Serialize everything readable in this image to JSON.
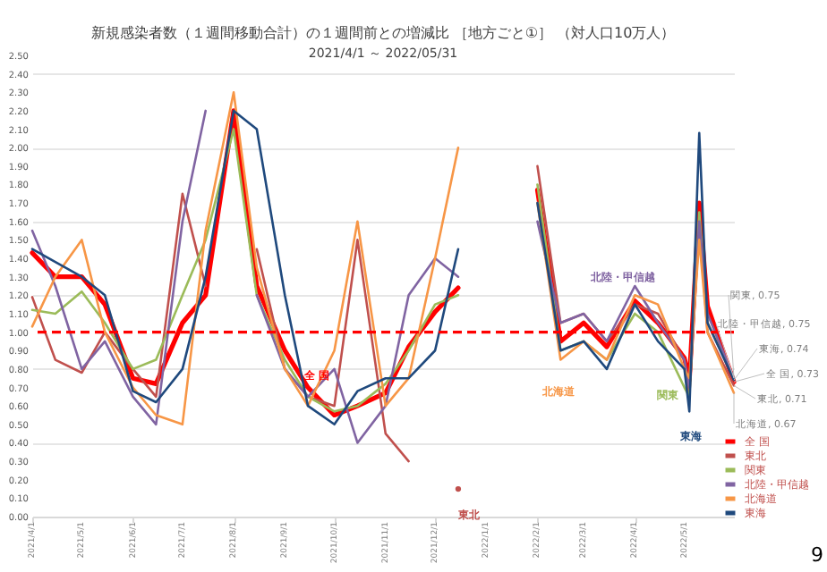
{
  "chart_data": {
    "type": "line",
    "title": "新規感染者数（１週間移動合計）の１週間前との増減比 ［地方ごと①］ （対人口10万人）",
    "subtitle": "2021/4/1 ～ 2022/05/31",
    "x": [
      "2021-04-01",
      "2021-04-15",
      "2021-05-01",
      "2021-05-15",
      "2021-06-01",
      "2021-06-15",
      "2021-07-01",
      "2021-07-15",
      "2021-08-01",
      "2021-08-15",
      "2021-09-01",
      "2021-09-15",
      "2021-10-01",
      "2021-10-15",
      "2021-11-01",
      "2021-11-15",
      "2021-12-01",
      "2021-12-15",
      "2022-01-01",
      "2022-01-15",
      "2022-02-01",
      "2022-02-15",
      "2022-03-01",
      "2022-03-15",
      "2022-04-01",
      "2022-04-15",
      "2022-05-01",
      "2022-05-04",
      "2022-05-10",
      "2022-05-15",
      "2022-05-31"
    ],
    "series": [
      {
        "name": "全 国",
        "color": "#ff0000",
        "values": [
          1.43,
          1.3,
          1.3,
          1.15,
          0.75,
          0.72,
          1.05,
          1.2,
          2.2,
          1.25,
          0.9,
          0.7,
          0.55,
          0.6,
          0.67,
          0.92,
          1.11,
          1.24,
          null,
          null,
          1.77,
          0.95,
          1.05,
          0.92,
          1.17,
          1.05,
          0.86,
          0.74,
          1.7,
          1.14,
          0.73
        ]
      },
      {
        "name": "東北",
        "color": "#c0504d",
        "values": [
          1.19,
          0.85,
          0.78,
          1.0,
          0.8,
          0.65,
          1.75,
          1.25,
          null,
          1.45,
          0.8,
          0.65,
          0.6,
          1.5,
          0.45,
          0.3,
          null,
          0.15,
          null,
          null,
          1.9,
          1.05,
          1.1,
          0.95,
          1.15,
          1.1,
          0.85,
          0.65,
          1.6,
          1.0,
          0.71
        ]
      },
      {
        "name": "関東",
        "color": "#9bbb59",
        "values": [
          1.12,
          1.1,
          1.22,
          1.05,
          0.8,
          0.85,
          1.2,
          1.5,
          2.1,
          1.2,
          0.85,
          0.65,
          0.57,
          0.6,
          0.72,
          0.9,
          1.15,
          1.2,
          null,
          null,
          1.8,
          0.9,
          0.95,
          0.85,
          1.1,
          1.0,
          0.7,
          0.65,
          1.65,
          1.05,
          0.75
        ]
      },
      {
        "name": "北陸・甲信越",
        "color": "#8064a2",
        "values": [
          1.55,
          1.25,
          0.8,
          0.95,
          0.65,
          0.5,
          1.6,
          2.2,
          null,
          1.2,
          0.8,
          0.65,
          0.8,
          0.4,
          0.6,
          1.2,
          1.4,
          1.3,
          null,
          null,
          1.6,
          1.05,
          1.1,
          0.95,
          1.25,
          1.05,
          0.85,
          0.7,
          1.6,
          1.1,
          0.75
        ]
      },
      {
        "name": "北海道",
        "color": "#f79646",
        "values": [
          1.03,
          1.3,
          1.5,
          1.0,
          0.7,
          0.55,
          0.5,
          1.55,
          2.3,
          1.35,
          0.8,
          0.6,
          0.9,
          1.6,
          0.6,
          0.75,
          1.4,
          2.0,
          null,
          null,
          1.7,
          0.85,
          0.95,
          0.85,
          1.2,
          1.15,
          0.8,
          0.75,
          1.5,
          1.0,
          0.67
        ]
      },
      {
        "name": "東海",
        "color": "#1f497d",
        "values": [
          1.45,
          1.38,
          1.3,
          1.2,
          0.68,
          0.62,
          0.8,
          1.3,
          2.2,
          2.1,
          1.2,
          0.6,
          0.5,
          0.68,
          0.75,
          0.75,
          0.9,
          1.45,
          null,
          null,
          1.7,
          0.9,
          0.95,
          0.8,
          1.15,
          0.95,
          0.8,
          0.57,
          2.08,
          1.05,
          0.74
        ]
      }
    ],
    "xlim": [
      "2021-04-01",
      "2022-05-31"
    ],
    "xticks": [
      {
        "value": "2021-04-01",
        "label": "2021/4/1"
      },
      {
        "value": "2021-05-01",
        "label": "2021/5/1"
      },
      {
        "value": "2021-06-01",
        "label": "2021/6/1"
      },
      {
        "value": "2021-07-01",
        "label": "2021/7/1"
      },
      {
        "value": "2021-08-01",
        "label": "2021/8/1"
      },
      {
        "value": "2021-09-01",
        "label": "2021/9/1"
      },
      {
        "value": "2021-10-01",
        "label": "2021/10/1"
      },
      {
        "value": "2021-11-01",
        "label": "2021/11/1"
      },
      {
        "value": "2021-12-01",
        "label": "2021/12/1"
      },
      {
        "value": "2022-01-01",
        "label": "2022/1/1"
      },
      {
        "value": "2022-02-01",
        "label": "2022/2/1"
      },
      {
        "value": "2022-03-01",
        "label": "2022/3/1"
      },
      {
        "value": "2022-04-01",
        "label": "2022/4/1"
      },
      {
        "value": "2022-05-01",
        "label": "2022/5/1"
      }
    ],
    "ylim": [
      0,
      2.5
    ],
    "yticks": [
      {
        "value": 0,
        "label": "0.00"
      },
      {
        "value": 0.1,
        "label": "0.10"
      },
      {
        "value": 0.2,
        "label": "0.20"
      },
      {
        "value": 0.3,
        "label": "0.30"
      },
      {
        "value": 0.4,
        "label": "0.40"
      },
      {
        "value": 0.5,
        "label": "0.50"
      },
      {
        "value": 0.6,
        "label": "0.60"
      },
      {
        "value": 0.7,
        "label": "0.70"
      },
      {
        "value": 0.8,
        "label": "0.80"
      },
      {
        "value": 0.9,
        "label": "0.90"
      },
      {
        "value": 1,
        "label": "1.00"
      },
      {
        "value": 1.1,
        "label": "1.10"
      },
      {
        "value": 1.2,
        "label": "1.20"
      },
      {
        "value": 1.3,
        "label": "1.30"
      },
      {
        "value": 1.4,
        "label": "1.40"
      },
      {
        "value": 1.5,
        "label": "1.50"
      },
      {
        "value": 1.6,
        "label": "1.60"
      },
      {
        "value": 1.7,
        "label": "1.70"
      },
      {
        "value": 1.8,
        "label": "1.80"
      },
      {
        "value": 1.9,
        "label": "1.90"
      },
      {
        "value": 2,
        "label": "2.00"
      },
      {
        "value": 2.1,
        "label": "2.10"
      },
      {
        "value": 2.2,
        "label": "2.20"
      },
      {
        "value": 2.3,
        "label": "2.30"
      },
      {
        "value": 2.4,
        "label": "2.40"
      },
      {
        "value": 2.5,
        "label": "2.50"
      }
    ],
    "grid": "y",
    "legend": "right",
    "line_style": "solid",
    "ref_lines": [
      {
        "axis": "y",
        "value": 1.0,
        "color": "#ff0000",
        "line_style": "dashed"
      }
    ],
    "annotations": [
      "全 国",
      "東北",
      "北陸・甲信越",
      "北海道",
      "関東",
      "東海",
      {
        "text": "関東, 0.75",
        "x": "2022-05-31",
        "y": 0.75
      },
      {
        "text": "北陸・甲信越, 0.75",
        "x": "2022-05-31",
        "y": 0.75
      },
      {
        "text": "東海, 0.74",
        "x": "2022-05-31",
        "y": 0.74
      },
      {
        "text": "全 国, 0.73",
        "x": "2022-05-31",
        "y": 0.73
      },
      {
        "text": "東北, 0.71",
        "x": "2022-05-31",
        "y": 0.71
      },
      {
        "text": "北海道, 0.67",
        "x": "2022-05-31",
        "y": 0.67
      },
      "9"
    ]
  }
}
